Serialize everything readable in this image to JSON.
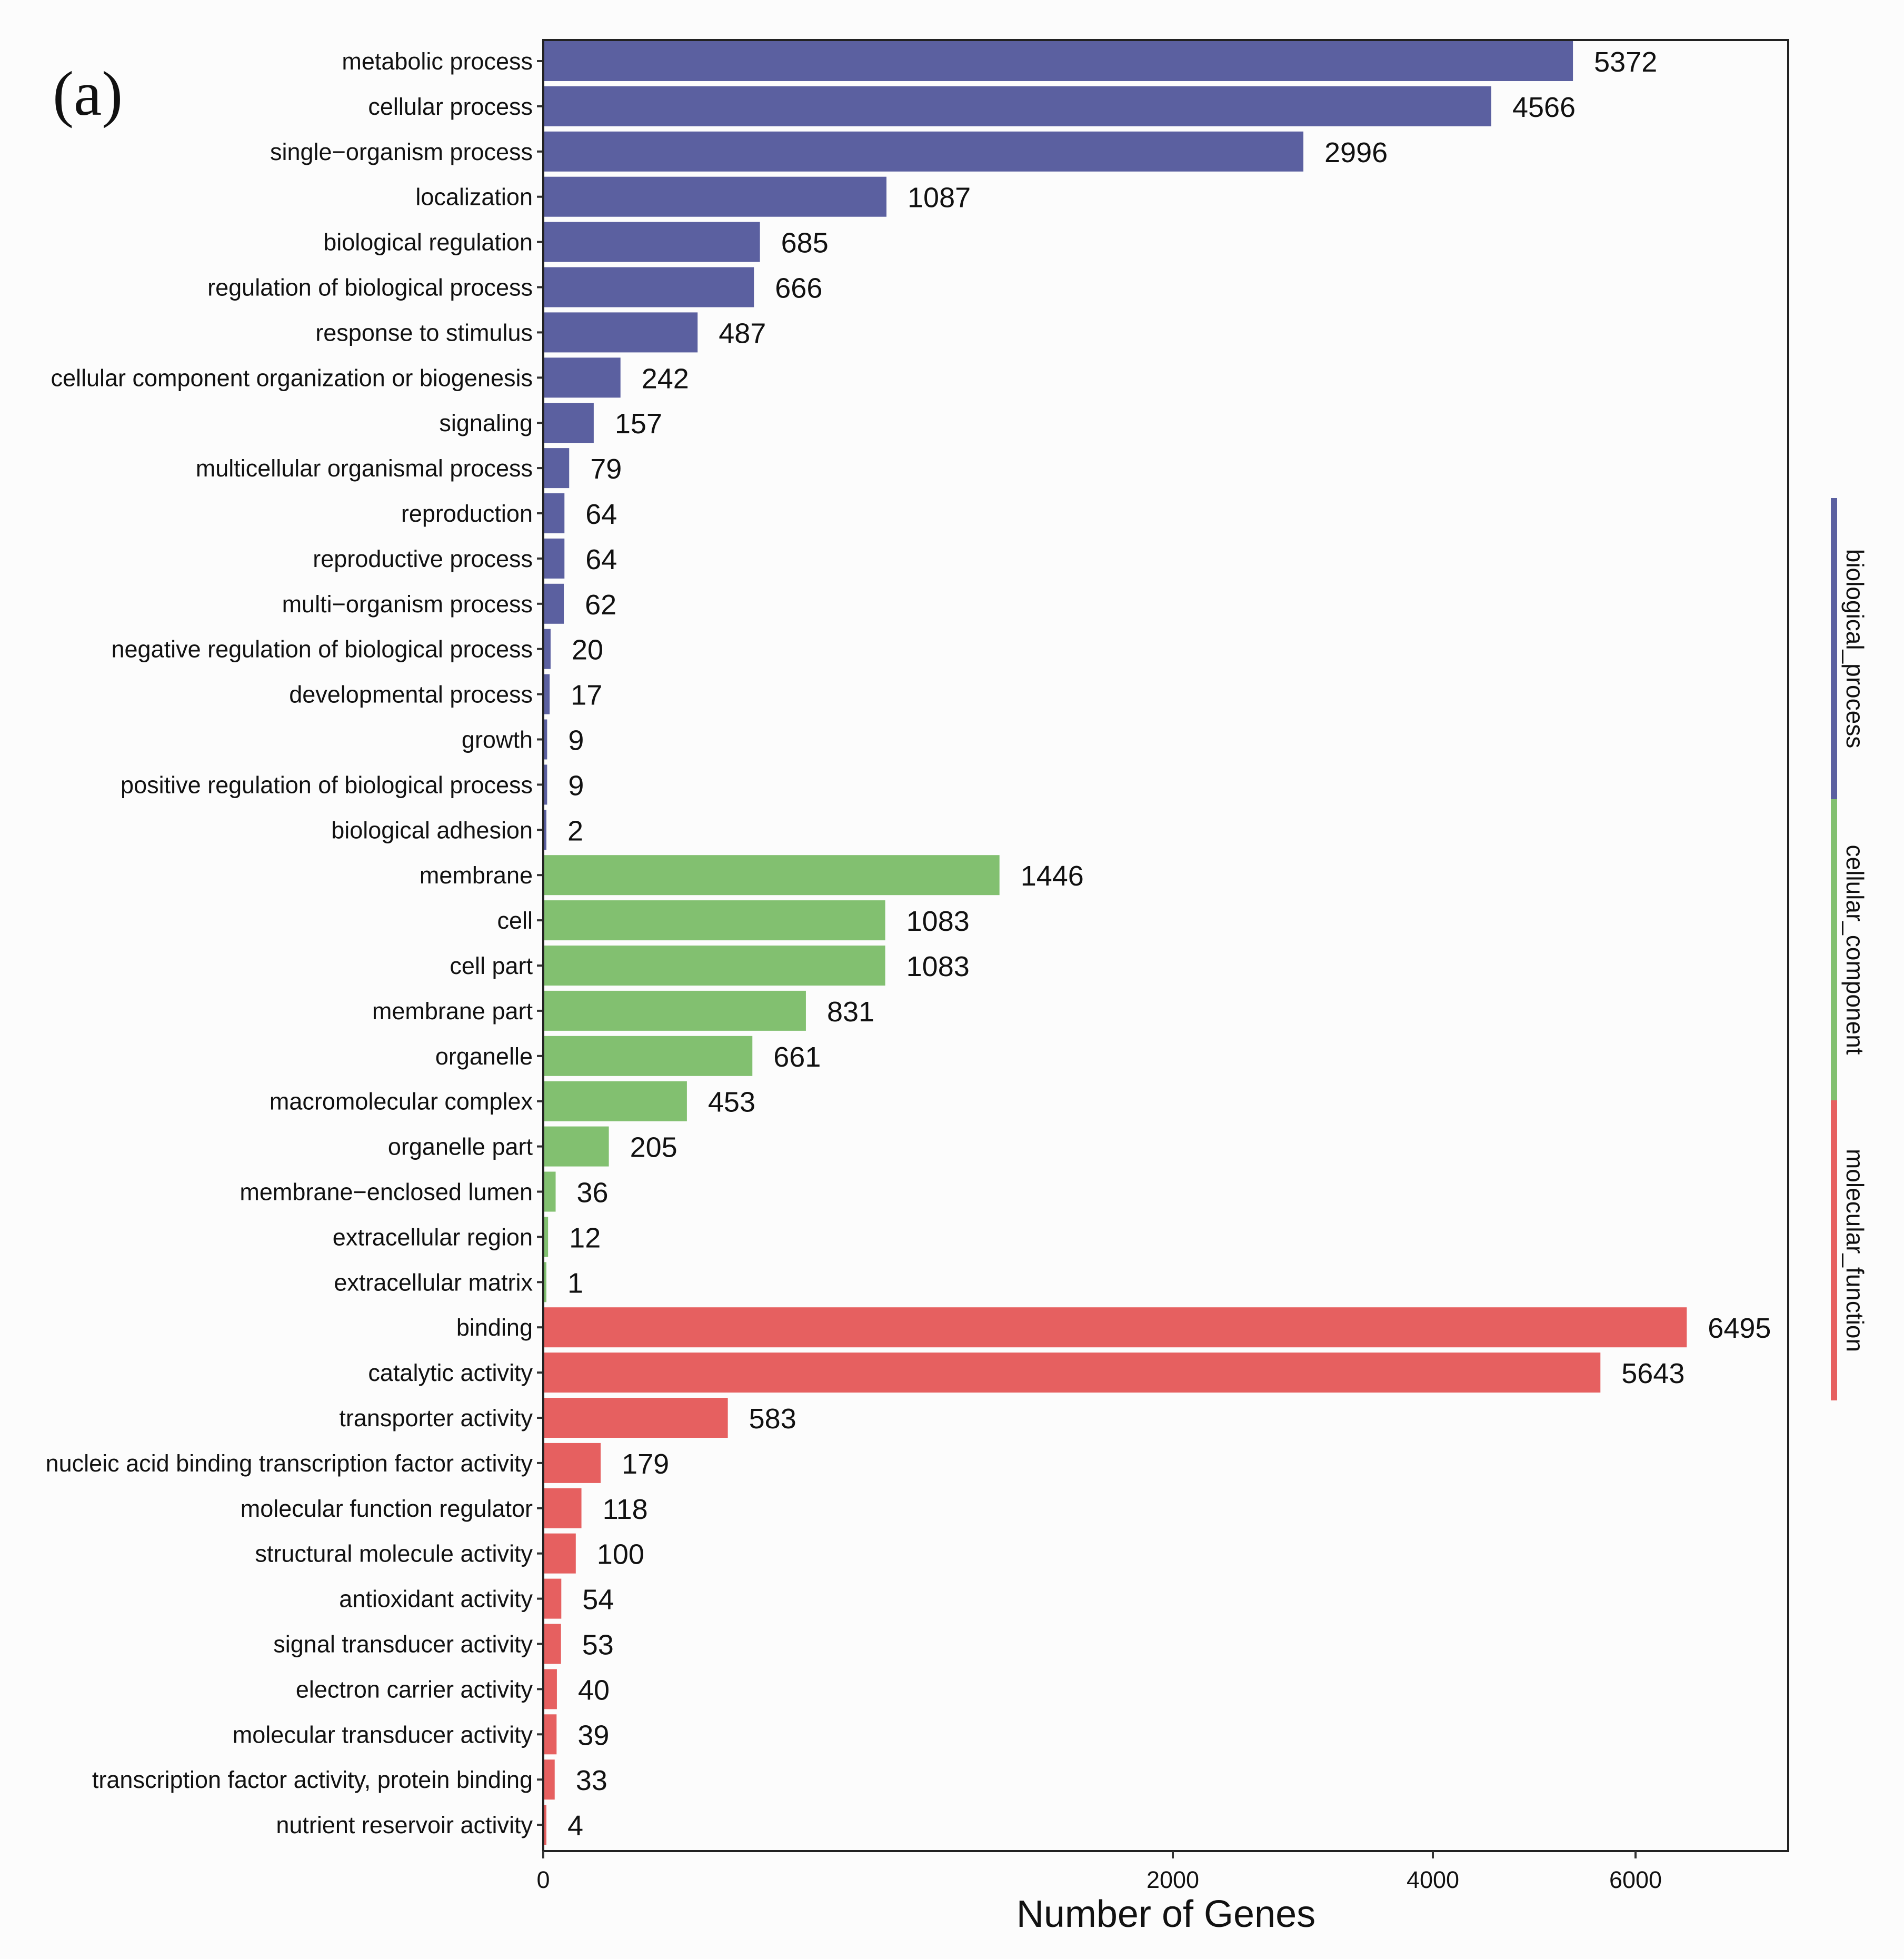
{
  "chart_data": {
    "type": "bar",
    "orientation": "horizontal",
    "panel_label": "(a)",
    "xlabel": "Number of Genes",
    "ylabel": "",
    "xlim": [
      0,
      7000
    ],
    "x_axis_scale": "non-linear (piecewise)",
    "x_ticks": [
      0,
      2000,
      4000,
      6000
    ],
    "tick_labels": [
      "0",
      "2000",
      "4000",
      "6000"
    ],
    "grid": false,
    "legend_position": "right",
    "groups": [
      {
        "name": "biological_process",
        "color": "#5b60a0",
        "categories": [
          "metabolic process",
          "cellular process",
          "single−organism process",
          "localization",
          "biological regulation",
          "regulation of biological process",
          "response to stimulus",
          "cellular component organization or biogenesis",
          "signaling",
          "multicellular organismal process",
          "reproduction",
          "reproductive process",
          "multi−organism process",
          "negative regulation of biological process",
          "developmental process",
          "growth",
          "positive regulation of biological process",
          "biological adhesion"
        ],
        "values": [
          5372,
          4566,
          2996,
          1087,
          685,
          666,
          487,
          242,
          157,
          79,
          64,
          64,
          62,
          20,
          17,
          9,
          9,
          2
        ]
      },
      {
        "name": "cellular_component",
        "color": "#82c070",
        "categories": [
          "membrane",
          "cell",
          "cell part",
          "membrane part",
          "organelle",
          "macromolecular complex",
          "organelle part",
          "membrane−enclosed lumen",
          "extracellular region",
          "extracellular matrix"
        ],
        "values": [
          1446,
          1083,
          1083,
          831,
          661,
          453,
          205,
          36,
          12,
          1
        ]
      },
      {
        "name": "molecular_function",
        "color": "#e66060",
        "categories": [
          "binding",
          "catalytic activity",
          "transporter activity",
          "nucleic acid binding transcription factor activity",
          "molecular function regulator",
          "structural molecule activity",
          "antioxidant activity",
          "signal transducer activity",
          "electron carrier activity",
          "molecular transducer activity",
          "transcription factor activity, protein binding",
          "nutrient reservoir activity"
        ],
        "values": [
          6495,
          5643,
          583,
          179,
          118,
          100,
          54,
          53,
          40,
          39,
          33,
          4
        ]
      }
    ]
  }
}
